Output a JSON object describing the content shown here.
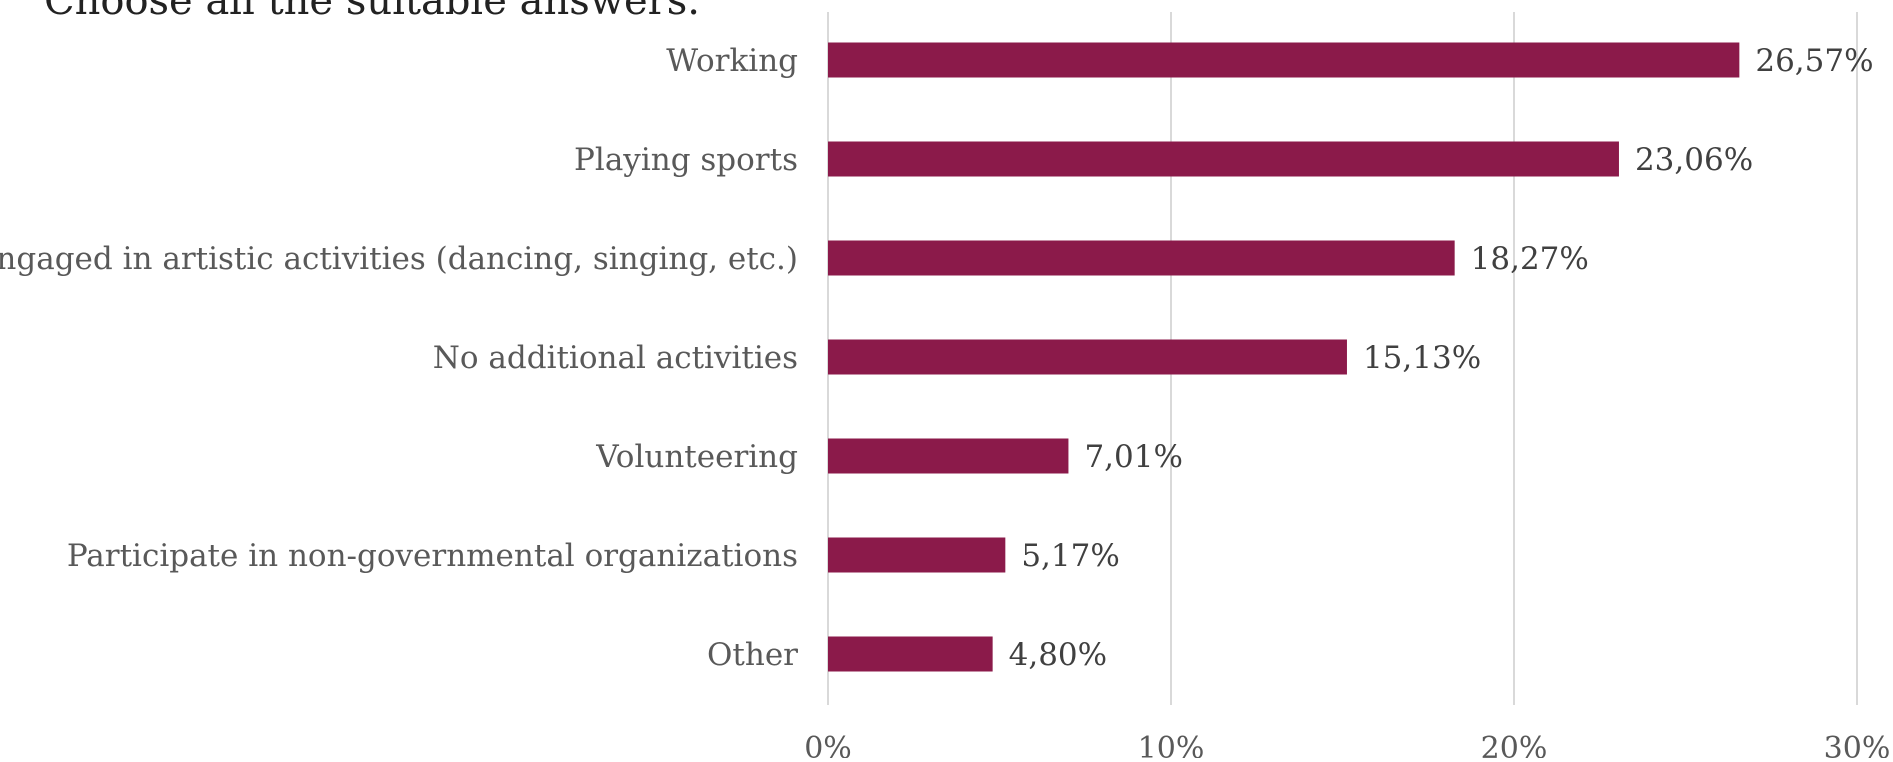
{
  "chart_data": {
    "type": "bar",
    "orientation": "horizontal",
    "title": "Choose all the suitable answers.",
    "categories": [
      "Working",
      "Playing sports",
      "Engaged in artistic activities (dancing, singing, etc.)",
      "No additional activities",
      "Volunteering",
      "Participate in non-governmental organizations",
      "Other"
    ],
    "values": [
      26.57,
      23.06,
      18.27,
      15.13,
      7.01,
      5.17,
      4.8
    ],
    "data_labels": [
      "26,57%",
      "23,06%",
      "18,27%",
      "15,13%",
      "7,01%",
      "5,17%",
      "4,80%"
    ],
    "x_ticks": [
      0,
      10,
      20,
      30
    ],
    "x_tick_labels": [
      "0%",
      "10%",
      "20%",
      "30%"
    ],
    "xlim": [
      0,
      30
    ],
    "xlabel": "",
    "ylabel": "",
    "grid": true,
    "legend": "none",
    "colors": {
      "bar": "#8B1A4A",
      "grid": "#D9D9D9",
      "category_text": "#595959",
      "value_text": "#404040",
      "tick_text": "#595959"
    }
  }
}
